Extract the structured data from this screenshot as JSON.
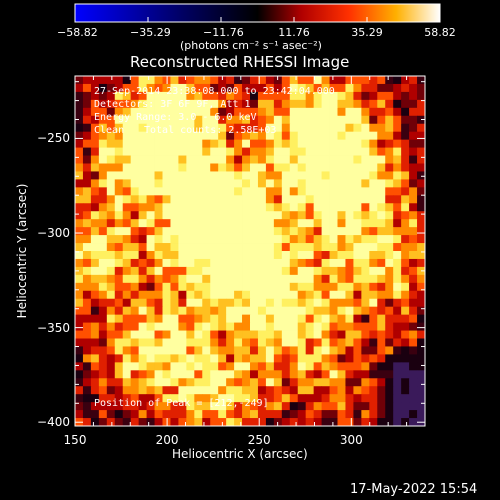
{
  "colorbar": {
    "tick_labels": [
      "−58.82",
      "−35.29",
      "−11.76",
      "11.76",
      "35.29",
      "58.82"
    ],
    "range": [
      -58.82,
      58.82
    ],
    "unit_label": "(photons cm⁻² s⁻¹ asec⁻²)",
    "colors": [
      "#0000ff",
      "#000000",
      "#ff0000",
      "#ffa000",
      "#ffffff"
    ]
  },
  "title": "Reconstructed RHESSI Image",
  "annotations": {
    "time_range": "27-Sep-2014 23:38:08.000 to 23:42:04.000",
    "detectors": "Detectors: 3F 6F 9F, Att 1",
    "energy_range": "Energy Range: 3.0 - 6.0 keV",
    "algorithm": "Clean",
    "total_counts": "Total counts: 2.58E+03",
    "peak_position": "Position of Peak = [212,-249]"
  },
  "axes": {
    "xlabel": "Heliocentric X (arcsec)",
    "ylabel": "Heliocentric Y (arcsec)",
    "xlim": [
      150,
      340
    ],
    "ylim": [
      -402,
      -217
    ],
    "xtick_labels": [
      "150",
      "200",
      "250",
      "300"
    ],
    "xtick_values": [
      150,
      200,
      250,
      300
    ],
    "ytick_labels": [
      "−250",
      "−300",
      "−350",
      "−400"
    ],
    "ytick_values": [
      -250,
      -300,
      -350,
      -400
    ]
  },
  "image": {
    "peak_position": [
      212,
      -249
    ],
    "palette": [
      "#1a0010",
      "#3a0010",
      "#700008",
      "#b00000",
      "#e02000",
      "#ff5000",
      "#ff8a00",
      "#ffc020",
      "#fff060",
      "#ffffa0"
    ]
  },
  "footer": {
    "timestamp": "17-May-2022 15:54"
  }
}
